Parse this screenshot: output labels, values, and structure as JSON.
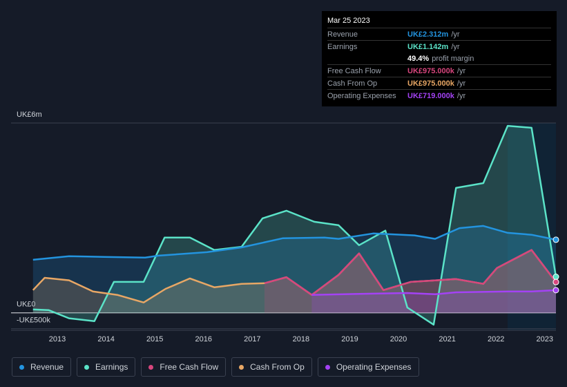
{
  "chart_data": {
    "type": "area-line",
    "xlim": [
      2012.05,
      2023.23
    ],
    "ylim": [
      -0.55,
      6
    ],
    "xticks": [
      2013,
      2014,
      2015,
      2016,
      2017,
      2018,
      2019,
      2020,
      2021,
      2022,
      2023
    ],
    "yticks": [
      {
        "value": 6,
        "label": "UK£6m"
      },
      {
        "value": 0,
        "label": "UK£0"
      },
      {
        "value": -0.5,
        "label": "-UK£500k"
      }
    ],
    "series": [
      {
        "name": "Revenue",
        "color": "#2394df",
        "x": [
          2012.5,
          2013.24,
          2013.95,
          2014.8,
          2015.08,
          2016.07,
          2016.78,
          2017.63,
          2018.48,
          2018.77,
          2019.48,
          2020.33,
          2020.75,
          2021.25,
          2021.74,
          2022.24,
          2022.73,
          2023.23
        ],
        "values": [
          1.68,
          1.79,
          1.77,
          1.75,
          1.81,
          1.92,
          2.07,
          2.36,
          2.38,
          2.34,
          2.51,
          2.45,
          2.34,
          2.68,
          2.75,
          2.53,
          2.47,
          2.312
        ]
      },
      {
        "name": "Earnings",
        "color": "#5be3c8",
        "x": [
          2012.5,
          2012.82,
          2013.24,
          2013.76,
          2014.16,
          2014.77,
          2015.2,
          2015.72,
          2016.22,
          2016.78,
          2017.21,
          2017.7,
          2018.27,
          2018.77,
          2019.19,
          2019.73,
          2020.18,
          2020.72,
          2021.18,
          2021.74,
          2022.24,
          2022.73,
          2023.23
        ],
        "values": [
          0.11,
          0.09,
          -0.17,
          -0.26,
          0.98,
          0.98,
          2.38,
          2.38,
          1.99,
          2.09,
          2.99,
          3.23,
          2.88,
          2.77,
          2.14,
          2.6,
          0.17,
          -0.37,
          3.95,
          4.1,
          5.91,
          5.85,
          1.142
        ]
      },
      {
        "name": "Free Cash Flow",
        "color": "#d7467d",
        "x": [
          2017.25,
          2017.7,
          2018.22,
          2018.77,
          2019.19,
          2019.69,
          2020.25,
          2021.18,
          2021.74,
          2022.02,
          2022.73,
          2023.23
        ],
        "values": [
          0.94,
          1.13,
          0.57,
          1.2,
          1.88,
          0.72,
          0.98,
          1.07,
          0.92,
          1.42,
          1.99,
          0.975
        ]
      },
      {
        "name": "Cash From Op",
        "color": "#e8a765",
        "x": [
          2012.5,
          2012.74,
          2013.24,
          2013.73,
          2014.23,
          2014.77,
          2015.22,
          2015.72,
          2016.22,
          2016.78,
          2017.25,
          2017.7,
          2018.22,
          2018.77,
          2019.19,
          2019.69,
          2020.25,
          2021.18,
          2021.74,
          2022.02,
          2022.73,
          2023.23
        ],
        "values": [
          0.72,
          1.11,
          1.03,
          0.68,
          0.57,
          0.33,
          0.76,
          1.09,
          0.81,
          0.92,
          0.94,
          1.13,
          0.57,
          1.2,
          1.88,
          0.72,
          0.98,
          1.07,
          0.92,
          1.42,
          1.99,
          0.975
        ]
      },
      {
        "name": "Operating Expenses",
        "color": "#a442f5",
        "x": [
          2018.22,
          2019.48,
          2020.18,
          2020.75,
          2021.18,
          2022.24,
          2022.73,
          2023.23
        ],
        "values": [
          0.57,
          0.61,
          0.63,
          0.59,
          0.65,
          0.68,
          0.68,
          0.719
        ]
      }
    ]
  },
  "tooltip": {
    "date": "Mar 25 2023",
    "rows": [
      {
        "label": "Revenue",
        "value": "UK£2.312m",
        "unit": "/yr"
      },
      {
        "label": "Earnings",
        "value": "UK£1.142m",
        "unit": "/yr"
      },
      {
        "label": "Free Cash Flow",
        "value": "UK£975.000k",
        "unit": "/yr"
      },
      {
        "label": "Cash From Op",
        "value": "UK£975.000k",
        "unit": "/yr"
      },
      {
        "label": "Operating Expenses",
        "value": "UK£719.000k",
        "unit": "/yr"
      }
    ],
    "margin": {
      "value": "49.4%",
      "text": "profit margin"
    }
  }
}
